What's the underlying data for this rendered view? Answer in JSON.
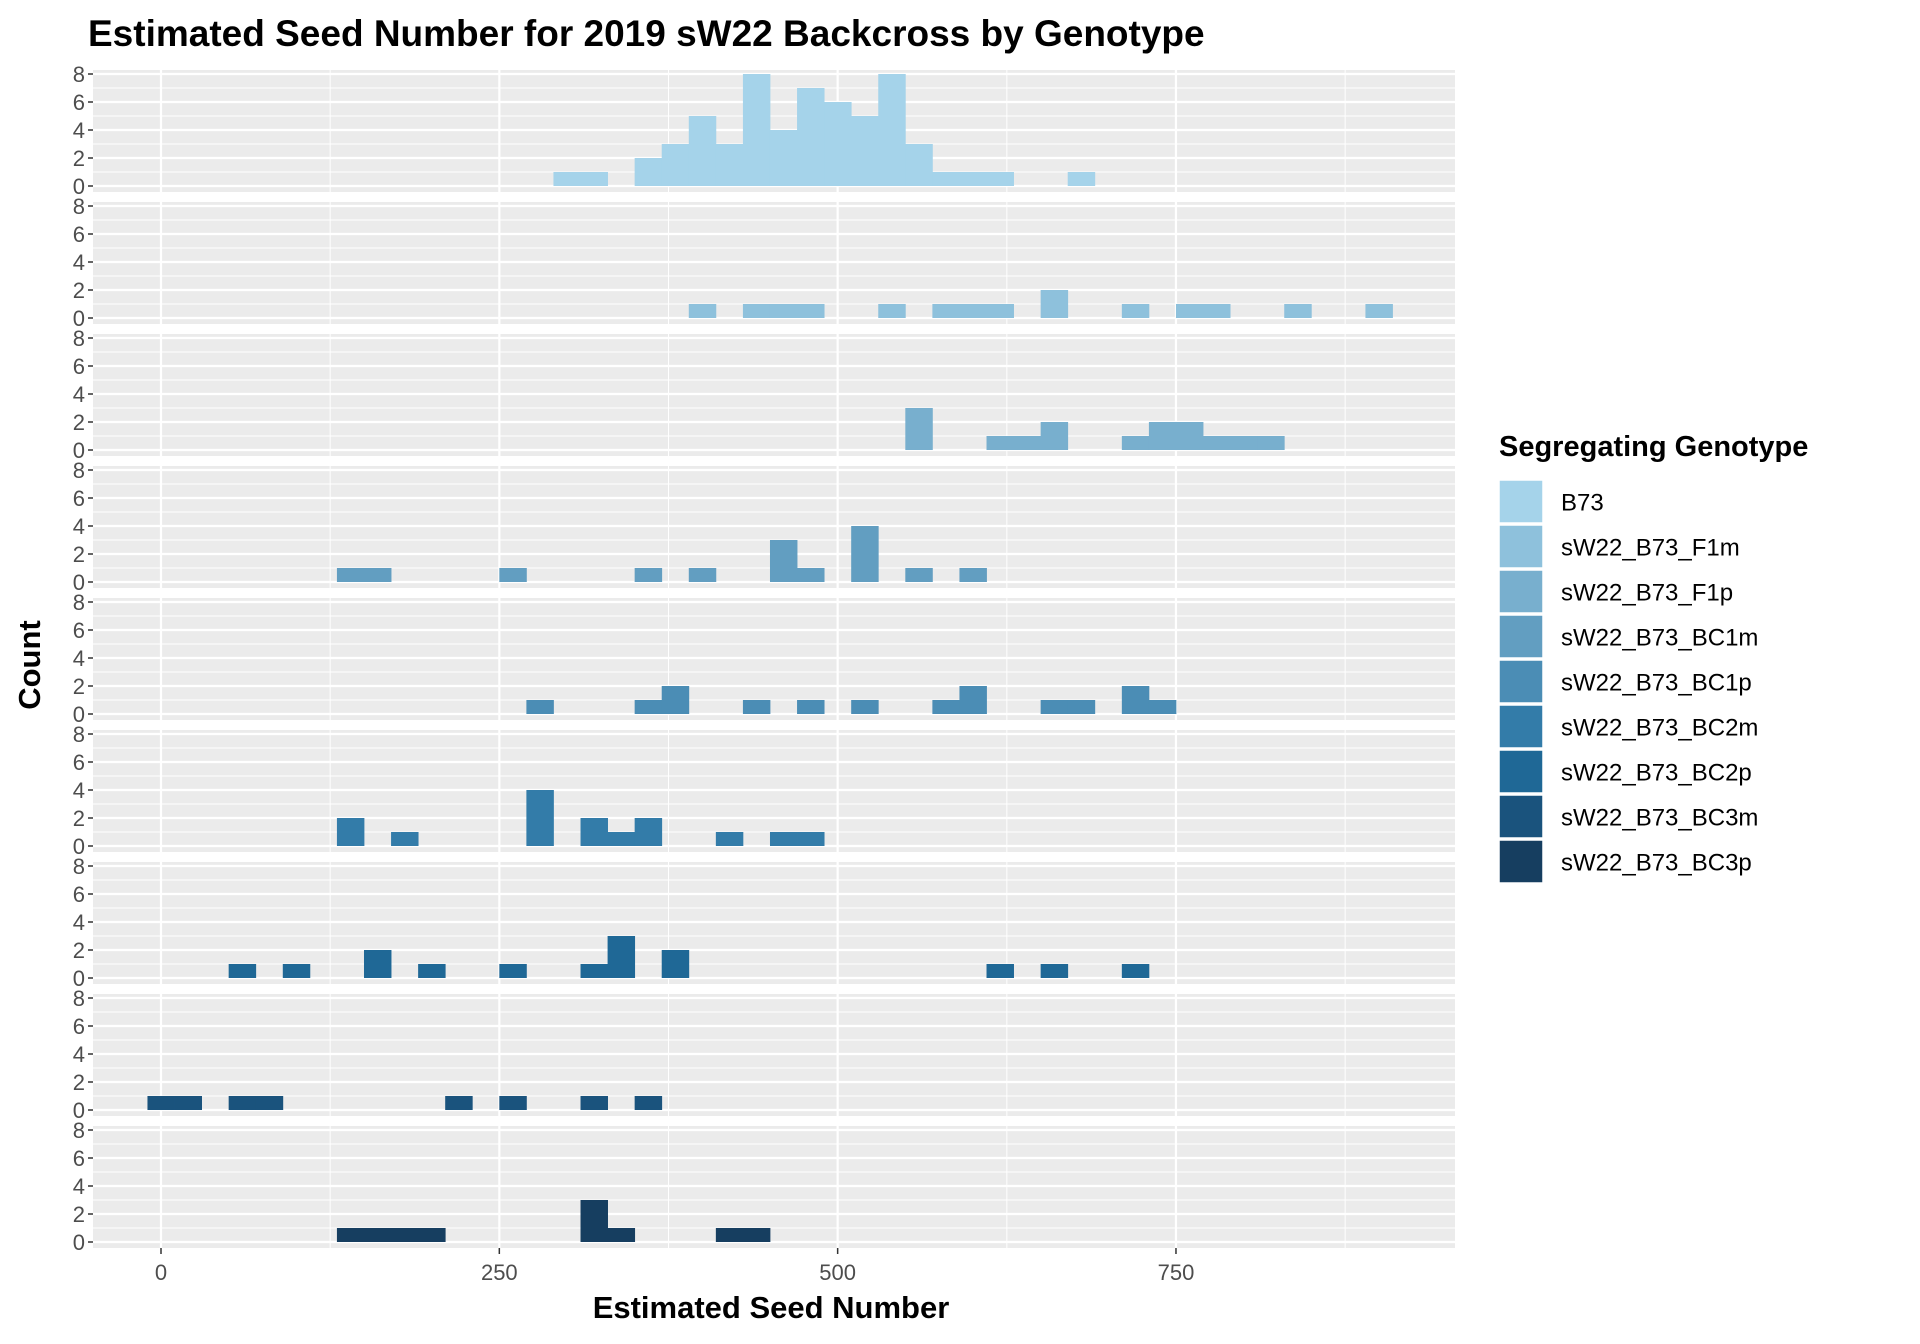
{
  "chart_data": {
    "type": "histogram",
    "title": "Estimated Seed Number for 2019 sW22 Backcross by Genotype",
    "xlabel": "Estimated Seed Number",
    "ylabel": "Count",
    "xlim": [
      -50,
      950
    ],
    "ylim": [
      0,
      8
    ],
    "x_ticks": [
      0,
      250,
      500,
      750
    ],
    "x_tick_labels": [
      "0",
      "250",
      "500",
      "750"
    ],
    "y_ticks": [
      0,
      2,
      4,
      6,
      8
    ],
    "y_tick_labels": [
      "0",
      "2",
      "4",
      "6",
      "8"
    ],
    "bin_width": 20,
    "legend_title": "Segregating Genotype",
    "legend_position": "right",
    "series": [
      {
        "name": "B73",
        "color": "#a5d3ea",
        "bins": [
          [
            300,
            1
          ],
          [
            320,
            1
          ],
          [
            360,
            2
          ],
          [
            380,
            3
          ],
          [
            400,
            5
          ],
          [
            420,
            3
          ],
          [
            440,
            8
          ],
          [
            460,
            4
          ],
          [
            480,
            7
          ],
          [
            500,
            6
          ],
          [
            520,
            5
          ],
          [
            540,
            8
          ],
          [
            560,
            3
          ],
          [
            580,
            1
          ],
          [
            600,
            1
          ],
          [
            620,
            1
          ],
          [
            680,
            1
          ]
        ]
      },
      {
        "name": "sW22_B73_F1m",
        "color": "#8ec1dc",
        "bins": [
          [
            400,
            1
          ],
          [
            440,
            1
          ],
          [
            460,
            1
          ],
          [
            480,
            1
          ],
          [
            540,
            1
          ],
          [
            580,
            1
          ],
          [
            600,
            1
          ],
          [
            620,
            1
          ],
          [
            660,
            2
          ],
          [
            720,
            1
          ],
          [
            760,
            1
          ],
          [
            780,
            1
          ],
          [
            840,
            1
          ],
          [
            900,
            1
          ]
        ]
      },
      {
        "name": "sW22_B73_F1p",
        "color": "#78afce",
        "bins": [
          [
            560,
            3
          ],
          [
            620,
            1
          ],
          [
            640,
            1
          ],
          [
            660,
            2
          ],
          [
            720,
            1
          ],
          [
            740,
            2
          ],
          [
            760,
            2
          ],
          [
            780,
            1
          ],
          [
            800,
            1
          ],
          [
            820,
            1
          ]
        ]
      },
      {
        "name": "sW22_B73_BC1m",
        "color": "#629ec1",
        "bins": [
          [
            140,
            1
          ],
          [
            160,
            1
          ],
          [
            260,
            1
          ],
          [
            360,
            1
          ],
          [
            400,
            1
          ],
          [
            460,
            3
          ],
          [
            480,
            1
          ],
          [
            520,
            4
          ],
          [
            560,
            1
          ],
          [
            600,
            1
          ]
        ]
      },
      {
        "name": "sW22_B73_BC1p",
        "color": "#4b8db5",
        "bins": [
          [
            280,
            1
          ],
          [
            360,
            1
          ],
          [
            380,
            2
          ],
          [
            440,
            1
          ],
          [
            480,
            1
          ],
          [
            520,
            1
          ],
          [
            580,
            1
          ],
          [
            600,
            2
          ],
          [
            660,
            1
          ],
          [
            680,
            1
          ],
          [
            720,
            2
          ],
          [
            740,
            1
          ]
        ]
      },
      {
        "name": "sW22_B73_BC2m",
        "color": "#337ca9",
        "bins": [
          [
            140,
            2
          ],
          [
            180,
            1
          ],
          [
            280,
            4
          ],
          [
            320,
            2
          ],
          [
            340,
            1
          ],
          [
            360,
            2
          ],
          [
            420,
            1
          ],
          [
            460,
            1
          ],
          [
            480,
            1
          ]
        ]
      },
      {
        "name": "sW22_B73_BC2p",
        "color": "#1f6896",
        "bins": [
          [
            60,
            1
          ],
          [
            100,
            1
          ],
          [
            160,
            2
          ],
          [
            200,
            1
          ],
          [
            260,
            1
          ],
          [
            320,
            1
          ],
          [
            340,
            3
          ],
          [
            380,
            2
          ],
          [
            620,
            1
          ],
          [
            660,
            1
          ],
          [
            720,
            1
          ]
        ]
      },
      {
        "name": "sW22_B73_BC3m",
        "color": "#1a537d",
        "bins": [
          [
            0,
            1
          ],
          [
            20,
            1
          ],
          [
            60,
            1
          ],
          [
            80,
            1
          ],
          [
            220,
            1
          ],
          [
            260,
            1
          ],
          [
            320,
            1
          ],
          [
            360,
            1
          ]
        ]
      },
      {
        "name": "sW22_B73_BC3p",
        "color": "#163e60",
        "bins": [
          [
            140,
            1
          ],
          [
            160,
            1
          ],
          [
            180,
            1
          ],
          [
            200,
            1
          ],
          [
            320,
            3
          ],
          [
            340,
            1
          ],
          [
            420,
            1
          ],
          [
            440,
            1
          ]
        ]
      }
    ]
  }
}
